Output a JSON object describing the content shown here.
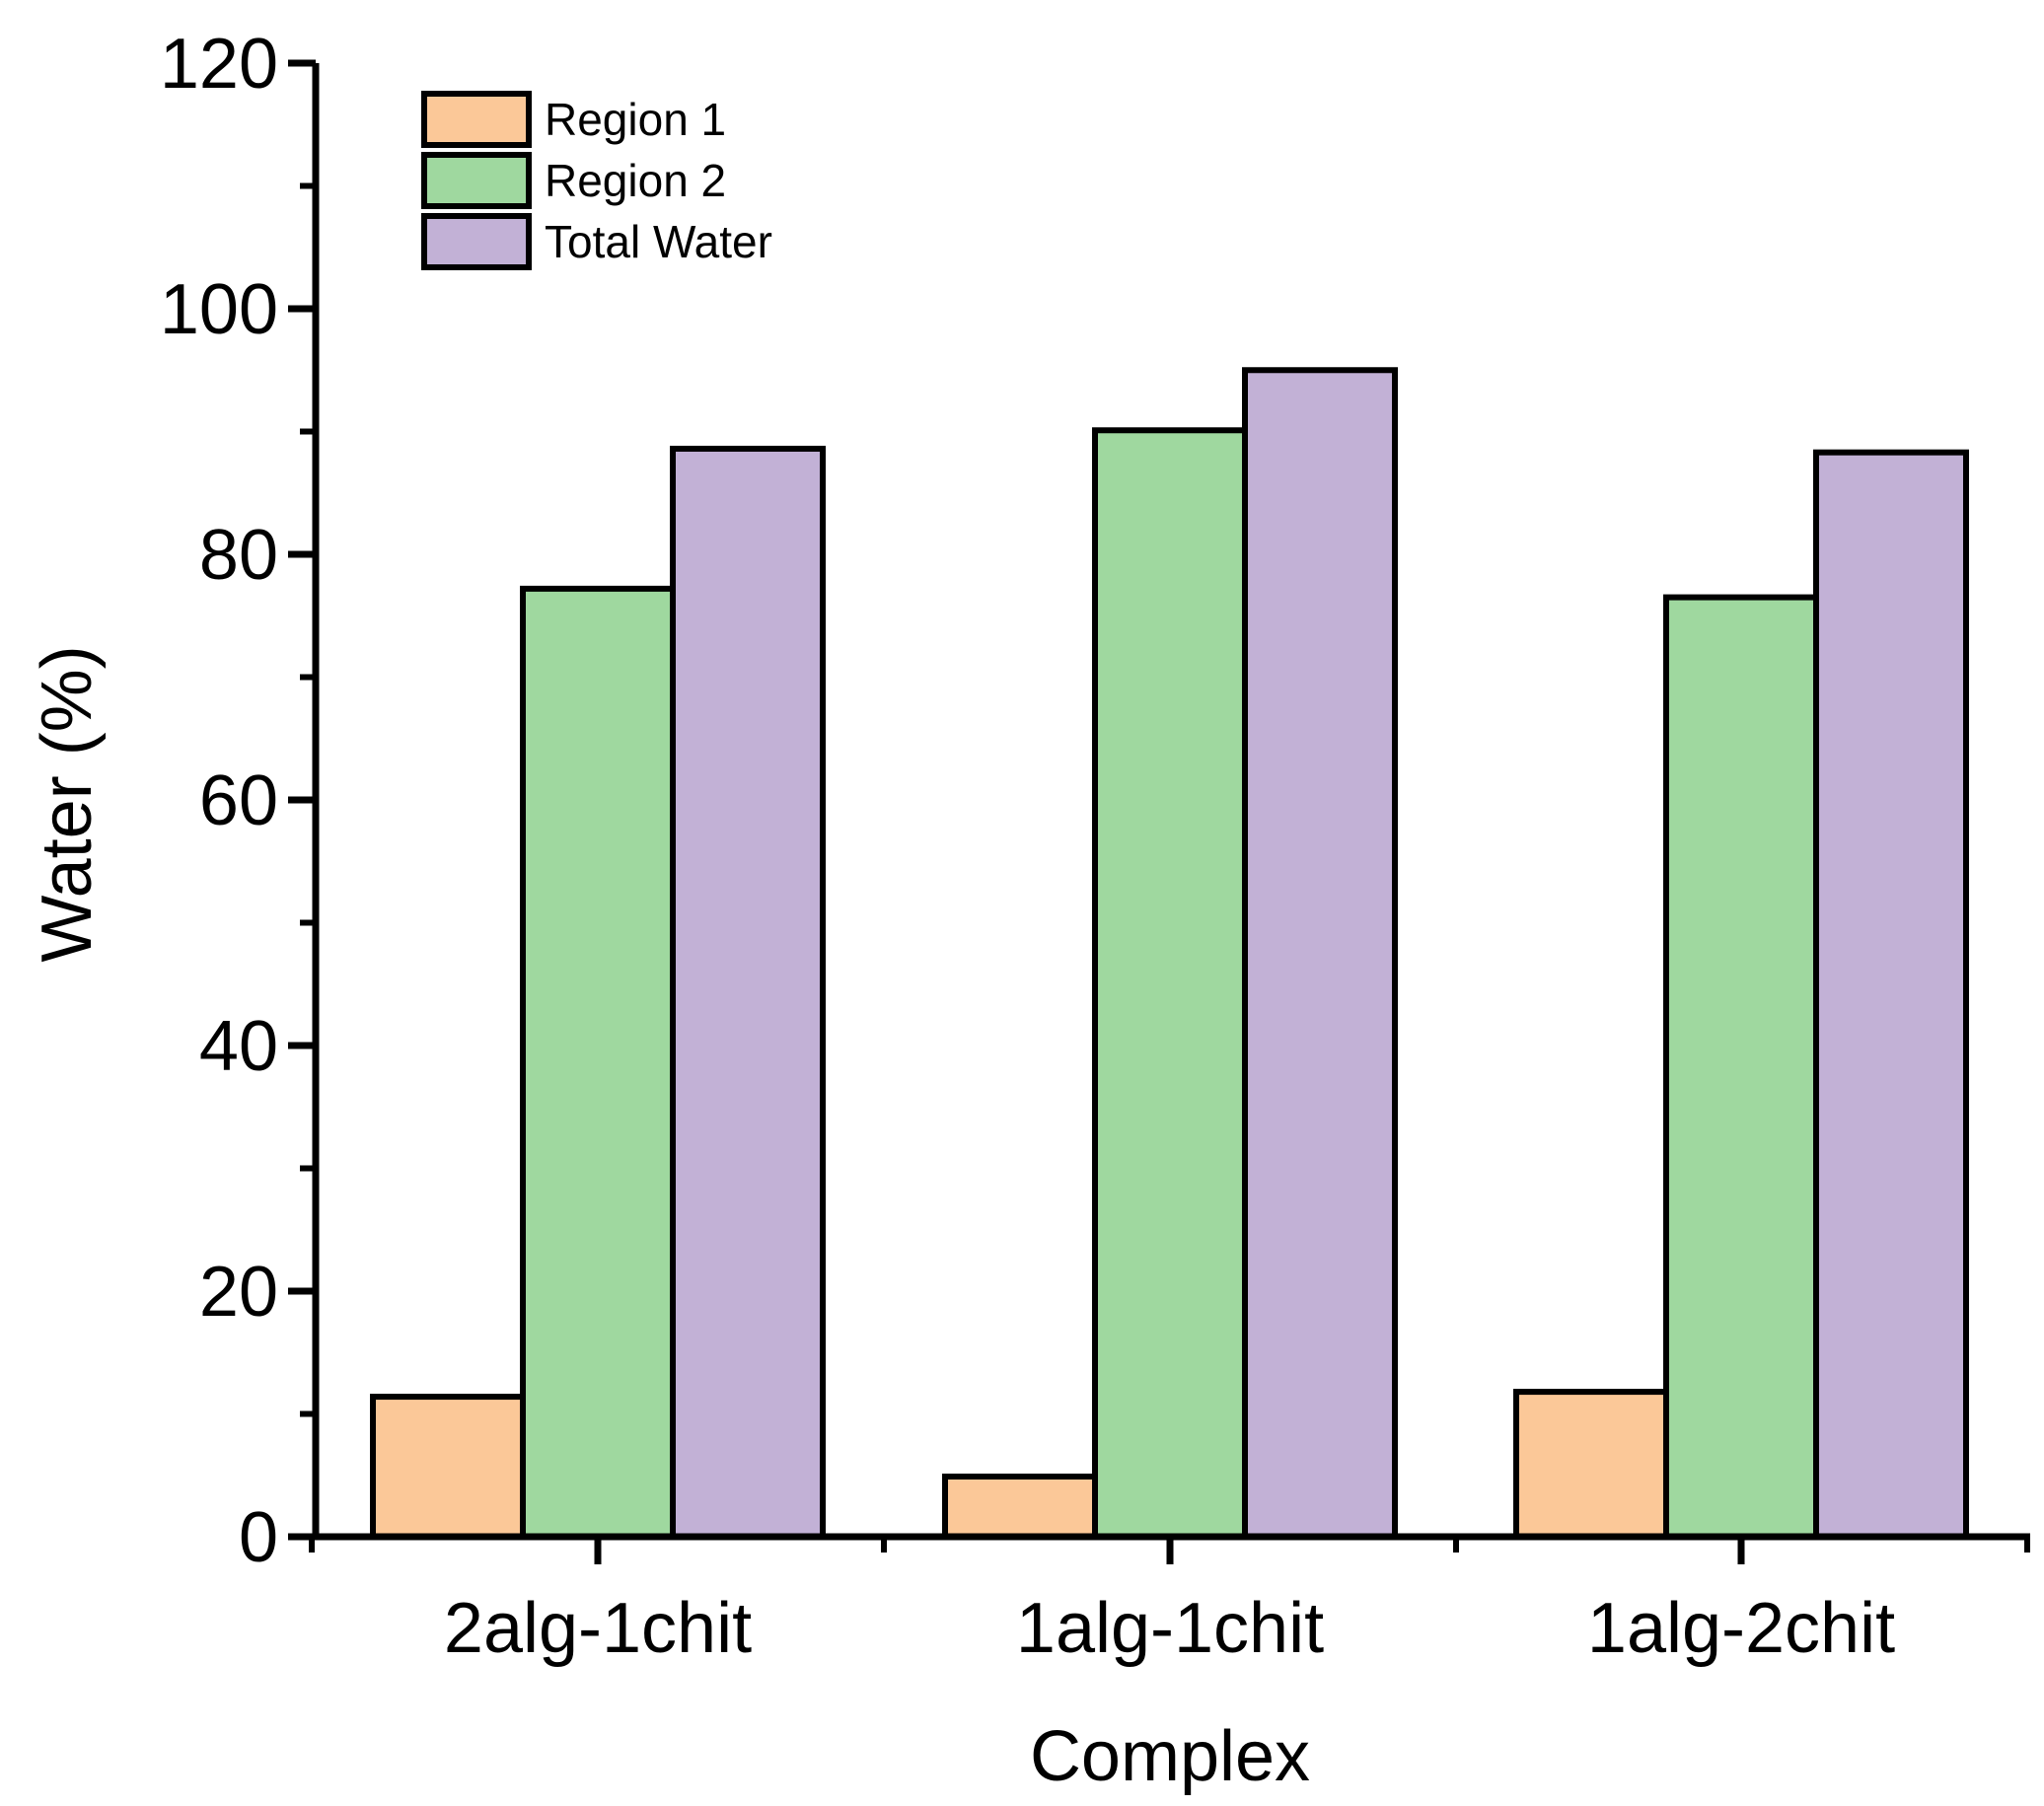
{
  "chart_data": {
    "type": "bar",
    "title": "",
    "xlabel": "Complex",
    "ylabel": "Water (%)",
    "ylim": [
      0,
      120
    ],
    "yticks": [
      0,
      20,
      40,
      60,
      80,
      100,
      120
    ],
    "ytick_labels": [
      "0",
      "20",
      "40",
      "60",
      "80",
      "100",
      "120"
    ],
    "categories": [
      "2alg-1chit",
      "1alg-1chit",
      "1alg-2chit"
    ],
    "series": [
      {
        "name": "Region 1",
        "color": "#fbc898",
        "values": [
          11.4,
          4.9,
          11.8
        ]
      },
      {
        "name": "Region 2",
        "color": "#9fd89f",
        "values": [
          77.2,
          90.1,
          76.5
        ]
      },
      {
        "name": "Total Water",
        "color": "#c2b1d6",
        "values": [
          88.6,
          95.0,
          88.3
        ]
      }
    ],
    "legend_position": "top-left",
    "grid": false
  }
}
